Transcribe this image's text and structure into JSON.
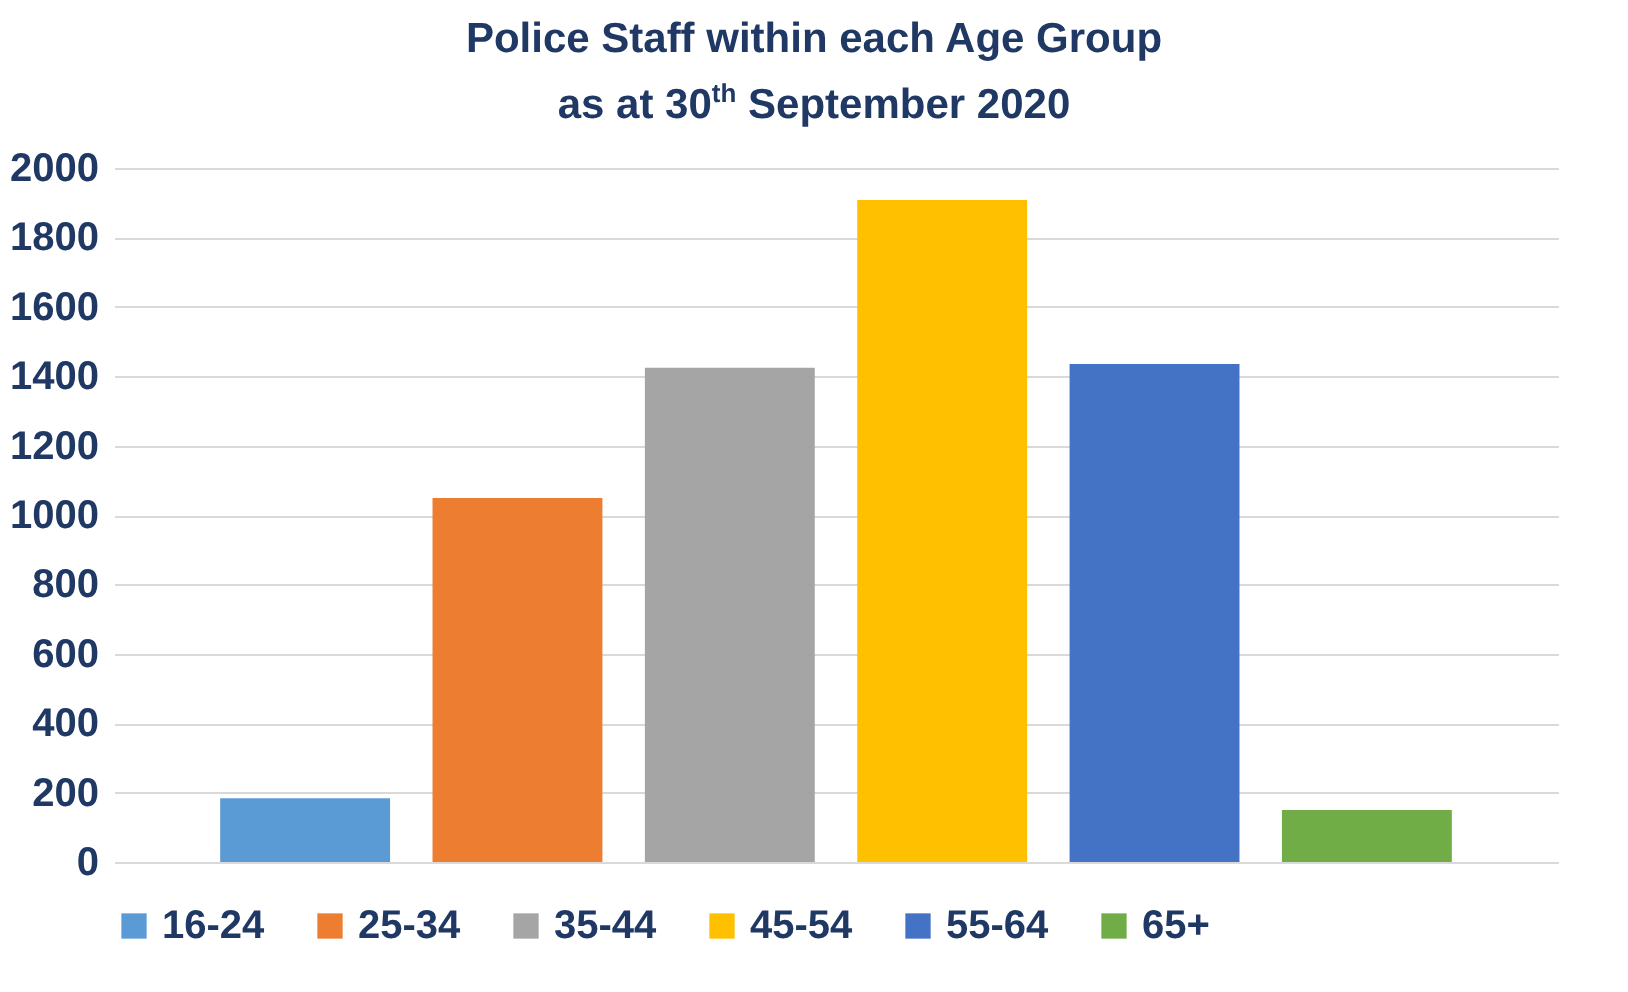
{
  "chart_data": {
    "type": "bar",
    "title": "Police Staff within each Age Group\nas at 30$^{th}$ September 2020",
    "categories": [
      null,
      null,
      null,
      null,
      null,
      null
    ],
    "series": [
      {
        "name": "16-24",
        "color": "#5b9bd5",
        "values": [
          184,
          null,
          null,
          null,
          null,
          null
        ]
      },
      {
        "name": "25-34",
        "color": "#ed7d31",
        "values": [
          null,
          1049,
          null,
          null,
          null,
          null
        ]
      },
      {
        "name": "35-44",
        "color": "#a5a5a5",
        "values": [
          null,
          null,
          1424,
          null,
          null,
          null
        ]
      },
      {
        "name": "45-54",
        "color": "#ffc000",
        "values": [
          null,
          null,
          null,
          1908,
          null,
          null
        ]
      },
      {
        "name": "55-64",
        "color": "#4472c4",
        "values": [
          null,
          null,
          null,
          null,
          1435,
          null
        ]
      },
      {
        "name": "65+",
        "color": "#70ad47",
        "values": [
          null,
          null,
          null,
          null,
          null,
          150
        ]
      }
    ],
    "ylim": [
      0,
      2000
    ],
    "yticks": [
      0,
      200,
      400,
      600,
      800,
      1000,
      1200,
      1400,
      1600,
      1800,
      2000
    ],
    "grid": "y",
    "legend": "bottom"
  }
}
